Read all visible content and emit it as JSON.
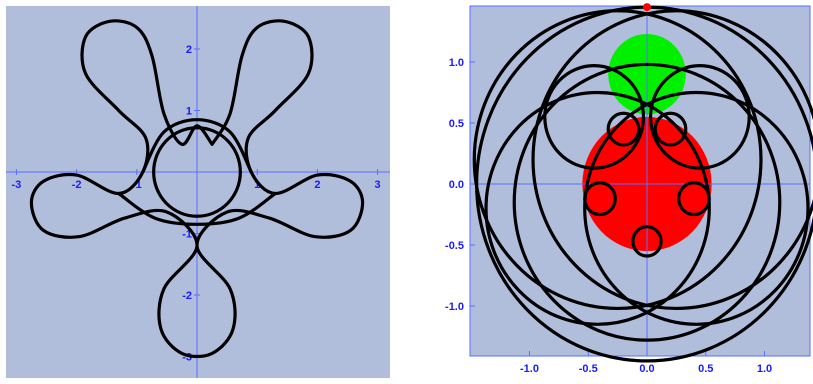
{
  "colors": {
    "background": "#b1bedb",
    "axis": "#5a6eff",
    "tick_label": "#1a1aff",
    "curve": "#000000",
    "green_disk": "#00f000",
    "red_disk": "#ff0000",
    "red_point": "#ff0000"
  },
  "chart_data": [
    {
      "type": "parametric-curve",
      "description_visible": false,
      "title": "",
      "xlabel": "",
      "ylabel": "",
      "xlim": [
        -3.15,
        3.15
      ],
      "ylim": [
        -3.15,
        2.6
      ],
      "x_ticks": [
        -3,
        -2,
        -1,
        1,
        2,
        3
      ],
      "x_tick_labels": [
        "-3",
        "-2",
        "-1",
        "1",
        "2",
        "3"
      ],
      "y_ticks": [
        -3,
        -2,
        -1,
        1,
        2
      ],
      "y_tick_labels": [
        "-3",
        "-2",
        "-1",
        "1",
        "2"
      ],
      "grid": false,
      "axes_style": "centered",
      "series": [
        {
          "kind": "circle",
          "center": [
            0,
            0
          ],
          "radius": 0.72
        },
        {
          "kind": "five-loop-rosette",
          "loops": [
            {
              "tip": [
                -1.5,
                2.2
              ],
              "note": "upper-left loop"
            },
            {
              "tip": [
                1.5,
                2.2
              ],
              "note": "upper-right loop"
            },
            {
              "tip": [
                -2.7,
                -0.6
              ],
              "note": "left loop"
            },
            {
              "tip": [
                2.7,
                -0.6
              ],
              "note": "right loop"
            },
            {
              "tip": [
                0,
                -2.9
              ],
              "note": "bottom loop"
            }
          ]
        }
      ]
    },
    {
      "type": "parametric-curve",
      "title": "",
      "xlabel": "",
      "ylabel": "",
      "xlim": [
        -1.45,
        1.38
      ],
      "ylim": [
        -1.45,
        1.48
      ],
      "x_ticks": [
        -1.0,
        -0.5,
        0.0,
        0.5,
        1.0
      ],
      "x_tick_labels": [
        "-1.0",
        "-0.5",
        "0.0",
        "0.5",
        "1.0"
      ],
      "y_ticks": [
        1.0,
        0.5,
        0.0,
        -0.5,
        -1.0
      ],
      "y_tick_labels": [
        "1.0",
        "0.5",
        "0.0",
        "-0.5",
        "-1.0"
      ],
      "grid": false,
      "axes_style": "framed",
      "shapes": [
        {
          "kind": "disk",
          "center": [
            0,
            0
          ],
          "radius": 0.55,
          "color": "red"
        },
        {
          "kind": "disk",
          "center": [
            0,
            0.9
          ],
          "radius": 0.33,
          "color": "green"
        },
        {
          "kind": "point",
          "at": [
            0,
            1.45
          ],
          "color": "red"
        }
      ],
      "series": [
        {
          "kind": "epicycloid-like",
          "outer_radius": 1.45,
          "cusps": 5
        }
      ]
    }
  ]
}
